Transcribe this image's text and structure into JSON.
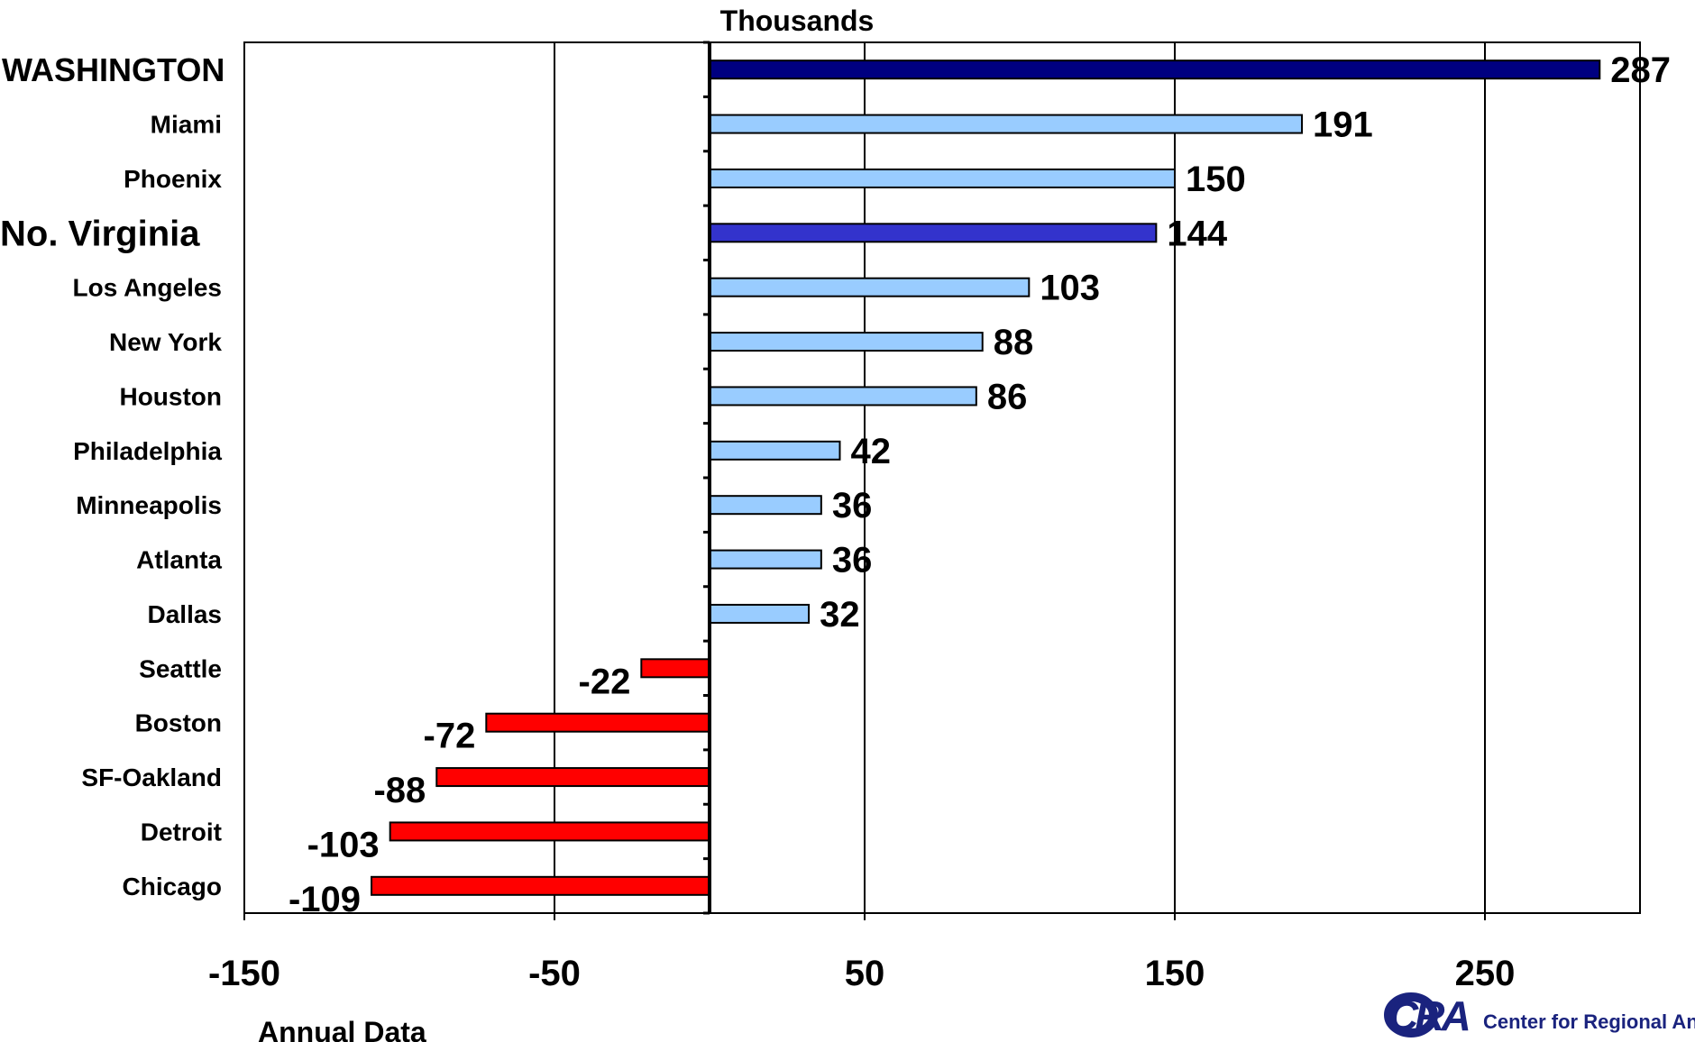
{
  "chart_data": {
    "type": "bar",
    "orientation": "horizontal",
    "title": "Thousands",
    "footnote": "Annual Data",
    "xlim": [
      -150,
      300
    ],
    "x_ticks": [
      -150,
      -50,
      50,
      150,
      250
    ],
    "grid": true,
    "categories": [
      "WASHINGTON",
      "Miami",
      "Phoenix",
      "No. Virginia",
      "Los Angeles",
      "New York",
      "Houston",
      "Philadelphia",
      "Minneapolis",
      "Atlanta",
      "Dallas",
      "Seattle",
      "Boston",
      "SF-Oakland",
      "Detroit",
      "Chicago"
    ],
    "values": [
      287,
      191,
      150,
      144,
      103,
      88,
      86,
      42,
      36,
      36,
      32,
      -22,
      -72,
      -88,
      -103,
      -109
    ],
    "value_labels": [
      "287",
      "191",
      "150",
      "144",
      "103",
      "88",
      "86",
      "42",
      "36",
      "36",
      "32",
      "-22",
      "-72",
      "-88",
      "-103",
      "-109"
    ],
    "highlighted": [
      "WASHINGTON",
      "No. Virginia"
    ],
    "colors": {
      "positive": "#99ccff",
      "negative": "#ff0000",
      "washington": "#000080",
      "no_virginia": "#3333cc",
      "highlight_label_washington": "#333399",
      "highlight_label_no_virginia": "#3333cc"
    }
  },
  "logo": {
    "mark": "CRA",
    "text": "Center for Regional Anal"
  }
}
